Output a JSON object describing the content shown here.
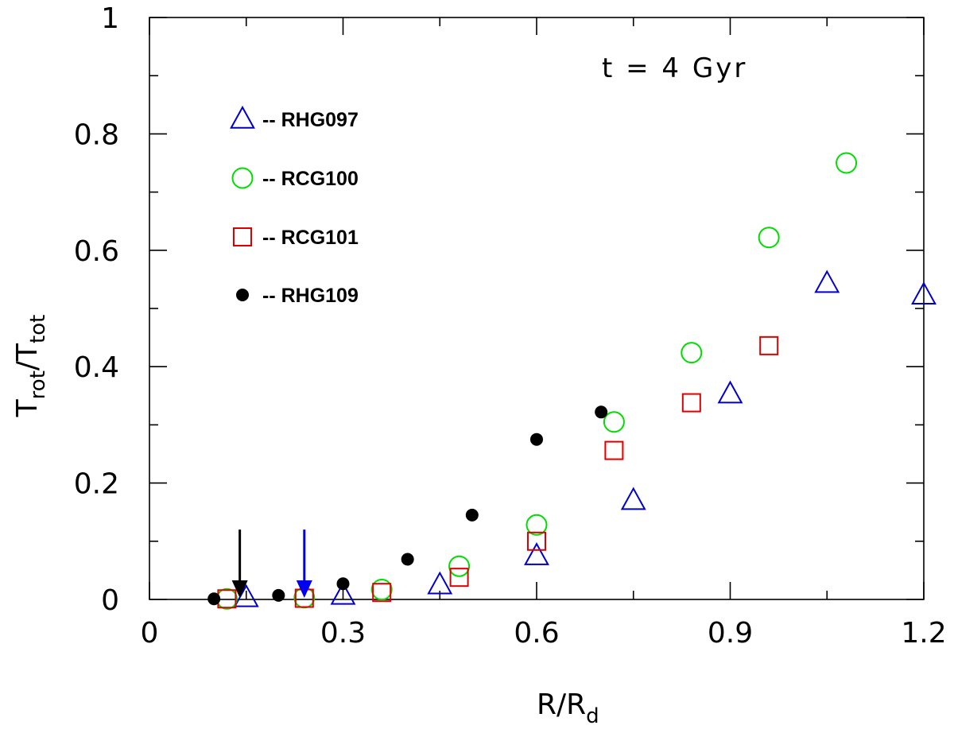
{
  "chart_data": {
    "type": "scatter",
    "title": "",
    "annotation": "t = 4 Gyr",
    "xlabel": {
      "main": "R/R",
      "sub": "d"
    },
    "ylabel": {
      "main1": "T",
      "sub1": "rot",
      "slash": "/",
      "main2": "T",
      "sub2": "tot"
    },
    "xlim": [
      0,
      1.2
    ],
    "ylim": [
      0,
      1.0
    ],
    "xticks": [
      0,
      0.3,
      0.6,
      0.9,
      1.2
    ],
    "xtick_labels": [
      "0",
      "0.3",
      "0.6",
      "0.9",
      "1.2"
    ],
    "yticks": [
      0,
      0.2,
      0.4,
      0.6,
      0.8,
      1.0
    ],
    "ytick_labels": [
      "0",
      "0.2",
      "0.4",
      "0.6",
      "0.8",
      "1"
    ],
    "grid": false,
    "legend_position": "top-left",
    "series": [
      {
        "name": "RHG097",
        "legend_label": "-- RHG097",
        "marker": "triangle-open",
        "color": "#0000cc",
        "x": [
          0.15,
          0.3,
          0.45,
          0.6,
          0.75,
          0.9,
          1.05,
          1.2
        ],
        "y": [
          0.003,
          0.007,
          0.025,
          0.075,
          0.17,
          0.353,
          0.543,
          0.523
        ]
      },
      {
        "name": "RCG100",
        "legend_label": "-- RCG100",
        "marker": "circle-open",
        "color": "#00dd00",
        "x": [
          0.12,
          0.24,
          0.36,
          0.48,
          0.6,
          0.72,
          0.84,
          0.96,
          1.08
        ],
        "y": [
          0.001,
          0.003,
          0.017,
          0.057,
          0.128,
          0.305,
          0.424,
          0.622,
          0.75
        ]
      },
      {
        "name": "RCG101",
        "legend_label": "-- RCG101",
        "marker": "square-open",
        "color": "#dd0000",
        "x": [
          0.12,
          0.24,
          0.36,
          0.48,
          0.6,
          0.72,
          0.84,
          0.96
        ],
        "y": [
          0.001,
          0.002,
          0.012,
          0.038,
          0.1,
          0.256,
          0.338,
          0.436
        ]
      },
      {
        "name": "RHG109",
        "legend_label": "-- RHG109",
        "marker": "circle-filled",
        "color": "#000000",
        "x": [
          0.1,
          0.2,
          0.3,
          0.4,
          0.5,
          0.6,
          0.7
        ],
        "y": [
          0.001,
          0.007,
          0.027,
          0.069,
          0.145,
          0.275,
          0.322
        ]
      }
    ],
    "arrows": [
      {
        "name": "black-arrow",
        "color": "#000000",
        "x": 0.14,
        "y_from": 0.12,
        "y_to": 0.0
      },
      {
        "name": "blue-arrow",
        "color": "#0000ee",
        "x": 0.24,
        "y_from": 0.12,
        "y_to": 0.0
      }
    ]
  }
}
